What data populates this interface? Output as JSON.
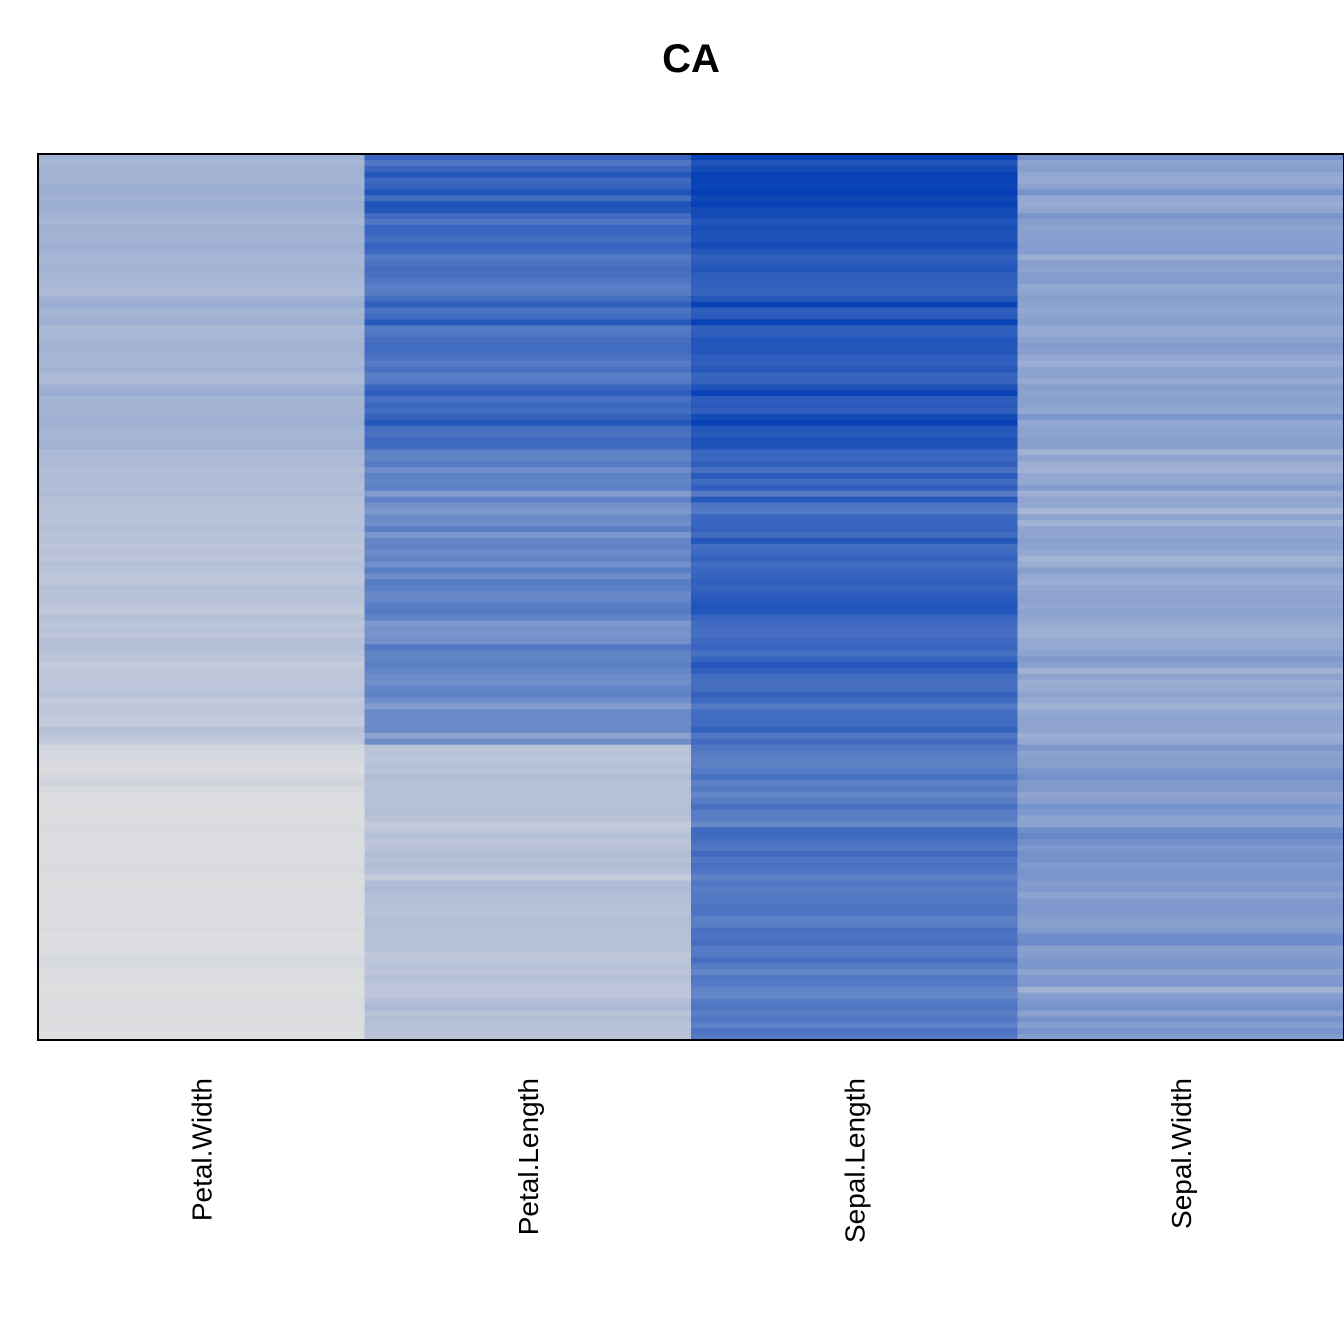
{
  "chart_data": {
    "type": "heatmap",
    "title": "CA",
    "xlabel": "",
    "ylabel": "",
    "columns": [
      "Petal.Width",
      "Petal.Length",
      "Sepal.Length",
      "Sepal.Width"
    ],
    "n_rows": 150,
    "value_range": [
      0,
      8
    ],
    "color_low": "#e0e0e0",
    "color_high": "#003cb4",
    "grid": false,
    "legend": "none",
    "row_values": {
      "Petal.Width": [
        2.3,
        2.0,
        2.2,
        2.3,
        2.2,
        2.4,
        2.5,
        2.3,
        2.5,
        2.4,
        2.2,
        2.0,
        2.3,
        2.3,
        2.2,
        2.4,
        2.3,
        2.0,
        2.1,
        2.2,
        2.1,
        2.0,
        1.9,
        1.8,
        2.3,
        2.5,
        2.1,
        2.2,
        2.4,
        1.9,
        2.0,
        2.1,
        2.3,
        2.2,
        2.1,
        2.0,
        2.2,
        1.8,
        1.8,
        2.3,
        2.5,
        2.1,
        2.2,
        2.2,
        2.3,
        2.4,
        2.2,
        2.1,
        2.2,
        2.3,
        1.9,
        1.8,
        1.9,
        1.6,
        1.8,
        1.7,
        1.6,
        1.8,
        1.5,
        1.5,
        1.5,
        1.5,
        1.4,
        1.6,
        1.4,
        1.4,
        1.3,
        1.4,
        1.3,
        1.5,
        1.4,
        1.3,
        1.2,
        1.5,
        1.4,
        1.4,
        1.3,
        1.1,
        1.5,
        1.3,
        1.4,
        1.3,
        1.5,
        1.6,
        1.4,
        1.3,
        1.0,
        1.3,
        1.2,
        1.3,
        1.3,
        1.4,
        1.1,
        1.2,
        1.3,
        1.0,
        1.0,
        1.5,
        1.3,
        1.1,
        0.5,
        0.4,
        0.4,
        0.3,
        0.2,
        0.4,
        0.6,
        0.3,
        0.2,
        0.2,
        0.2,
        0.1,
        0.2,
        0.2,
        0.3,
        0.2,
        0.2,
        0.2,
        0.2,
        0.2,
        0.2,
        0.3,
        0.2,
        0.1,
        0.2,
        0.2,
        0.2,
        0.2,
        0.2,
        0.1,
        0.2,
        0.3,
        0.1,
        0.2,
        0.2,
        0.2,
        0.4,
        0.3,
        0.2,
        0.2,
        0.1,
        0.1,
        0.1,
        0.2,
        0.2,
        0.2,
        0.1,
        0.2,
        0.1,
        0.1
      ],
      "Petal.Length": [
        6.0,
        5.1,
        5.9,
        6.7,
        5.8,
        6.1,
        6.9,
        5.6,
        6.9,
        6.7,
        5.7,
        5.1,
        6.0,
        5.9,
        5.5,
        6.1,
        5.8,
        5.0,
        5.3,
        5.6,
        5.4,
        5.1,
        4.8,
        4.9,
        5.6,
        6.3,
        5.2,
        5.6,
        6.6,
        5.0,
        5.1,
        5.5,
        5.7,
        5.6,
        5.3,
        4.9,
        5.4,
        4.8,
        5.0,
        5.9,
        6.4,
        5.4,
        5.8,
        5.6,
        6.1,
        6.7,
        5.5,
        5.3,
        5.8,
        5.7,
        4.7,
        4.5,
        4.9,
        4.0,
        4.6,
        4.5,
        4.7,
        3.3,
        4.6,
        3.9,
        3.5,
        4.2,
        4.0,
        4.7,
        3.6,
        4.4,
        4.5,
        4.1,
        4.5,
        3.9,
        4.8,
        4.0,
        4.9,
        4.7,
        4.3,
        4.4,
        4.8,
        5.0,
        4.5,
        3.5,
        3.8,
        3.7,
        3.9,
        5.1,
        4.5,
        4.5,
        4.7,
        4.4,
        4.1,
        4.0,
        4.4,
        4.6,
        4.0,
        3.3,
        4.2,
        4.2,
        4.2,
        4.3,
        3.0,
        4.1,
        1.4,
        1.4,
        1.3,
        1.5,
        1.4,
        1.7,
        1.4,
        1.5,
        1.4,
        1.5,
        1.5,
        1.6,
        1.4,
        1.1,
        1.2,
        1.5,
        1.3,
        1.4,
        1.7,
        1.5,
        1.7,
        1.5,
        1.0,
        1.7,
        1.9,
        1.6,
        1.6,
        1.5,
        1.4,
        1.6,
        1.6,
        1.5,
        1.5,
        1.4,
        1.5,
        1.2,
        1.3,
        1.4,
        1.3,
        1.5,
        1.3,
        1.3,
        1.3,
        1.6,
        1.9,
        1.4,
        1.6,
        1.4,
        1.5,
        1.4
      ],
      "Sepal.Length": [
        7.7,
        6.8,
        7.2,
        7.7,
        7.7,
        7.6,
        7.9,
        7.4,
        7.7,
        7.3,
        7.2,
        6.8,
        7.1,
        7.0,
        6.9,
        7.2,
        6.7,
        6.3,
        6.5,
        6.7,
        6.4,
        6.3,
        6.2,
        6.1,
        6.7,
        7.7,
        6.4,
        6.5,
        7.7,
        6.3,
        6.4,
        6.8,
        6.7,
        6.7,
        6.4,
        6.3,
        6.6,
        6.0,
        6.1,
        6.9,
        7.6,
        6.4,
        6.5,
        6.3,
        7.2,
        7.7,
        6.7,
        6.5,
        7.0,
        6.9,
        6.0,
        5.9,
        6.3,
        5.5,
        6.5,
        5.7,
        6.3,
        4.9,
        6.6,
        5.2,
        5.0,
        5.9,
        6.0,
        6.1,
        5.6,
        6.7,
        5.6,
        5.8,
        6.2,
        5.6,
        5.9,
        6.1,
        6.3,
        6.1,
        6.4,
        6.6,
        6.8,
        6.7,
        6.0,
        5.7,
        5.5,
        5.5,
        5.8,
        6.0,
        5.4,
        6.0,
        6.7,
        6.3,
        5.6,
        5.5,
        5.5,
        6.1,
        5.8,
        5.0,
        5.6,
        5.7,
        5.7,
        6.2,
        5.1,
        5.7,
        5.1,
        4.9,
        4.7,
        4.6,
        5.0,
        5.4,
        4.6,
        5.0,
        4.4,
        4.9,
        5.4,
        4.8,
        4.8,
        4.3,
        5.8,
        5.7,
        5.4,
        5.1,
        5.7,
        5.1,
        5.4,
        5.1,
        4.6,
        5.1,
        4.8,
        5.0,
        5.0,
        5.2,
        5.2,
        4.7,
        4.8,
        5.4,
        5.2,
        5.5,
        4.9,
        5.0,
        5.5,
        4.9,
        4.4,
        5.1,
        5.0,
        4.5,
        4.4,
        5.0,
        5.1,
        4.8,
        5.1,
        4.6,
        5.3,
        5.0
      ],
      "Sepal.Width": [
        3.8,
        3.0,
        3.2,
        2.8,
        2.6,
        3.0,
        3.8,
        2.8,
        2.6,
        2.9,
        3.6,
        3.2,
        3.0,
        3.2,
        3.1,
        3.2,
        3.3,
        2.5,
        3.2,
        3.0,
        3.2,
        3.3,
        2.8,
        3.0,
        3.1,
        3.0,
        2.8,
        3.0,
        3.1,
        2.7,
        2.7,
        3.0,
        3.3,
        3.1,
        2.8,
        2.5,
        3.0,
        3.0,
        2.6,
        3.1,
        3.0,
        3.1,
        3.0,
        2.8,
        3.6,
        2.8,
        3.0,
        3.0,
        3.2,
        3.1,
        2.2,
        3.0,
        2.5,
        2.3,
        2.8,
        2.8,
        3.3,
        2.4,
        2.9,
        2.7,
        2.0,
        3.0,
        2.2,
        2.9,
        2.9,
        3.1,
        3.0,
        2.7,
        2.2,
        2.5,
        3.2,
        2.8,
        2.5,
        2.8,
        2.9,
        3.0,
        2.8,
        3.0,
        2.9,
        2.6,
        2.4,
        2.4,
        2.7,
        2.7,
        3.0,
        3.4,
        3.1,
        2.3,
        3.0,
        2.5,
        2.6,
        3.0,
        2.6,
        2.3,
        2.7,
        3.0,
        2.9,
        2.9,
        2.5,
        2.8,
        3.5,
        3.0,
        3.2,
        3.1,
        3.6,
        3.9,
        3.4,
        3.4,
        2.9,
        3.1,
        3.7,
        3.4,
        3.0,
        3.0,
        4.0,
        4.4,
        3.9,
        3.5,
        3.8,
        3.8,
        3.4,
        3.7,
        3.6,
        3.3,
        3.4,
        3.0,
        3.4,
        3.5,
        3.4,
        3.2,
        3.1,
        3.4,
        4.1,
        4.2,
        3.1,
        3.2,
        3.5,
        3.6,
        3.0,
        3.4,
        3.5,
        2.3,
        3.2,
        3.5,
        3.8,
        3.0,
        3.8,
        3.2,
        3.7,
        3.3
      ]
    }
  }
}
